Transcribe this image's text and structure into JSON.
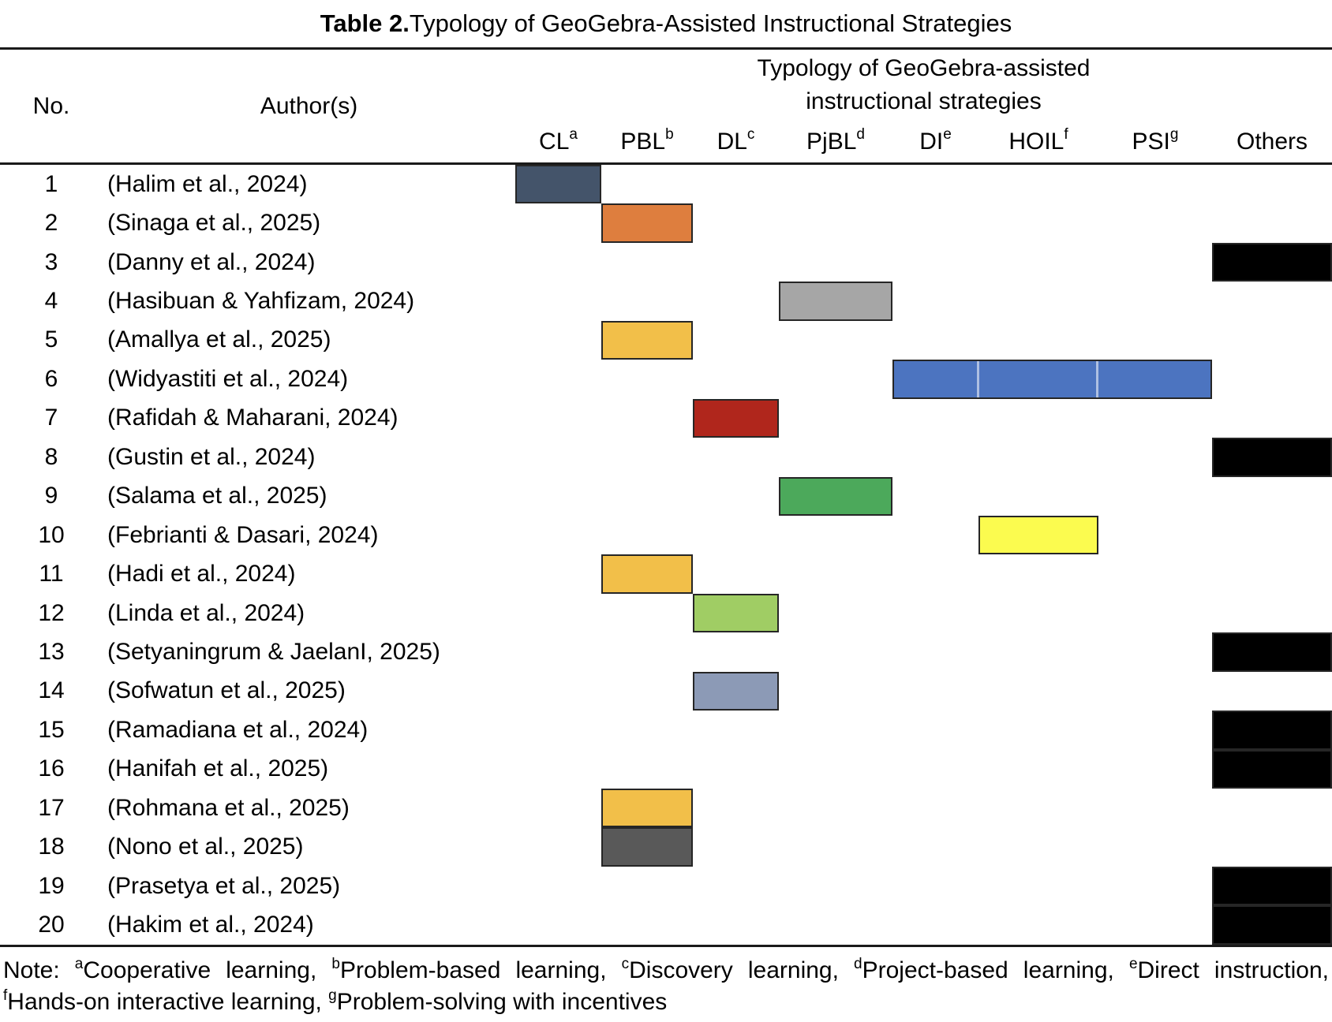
{
  "title": {
    "bold": "Table 2.",
    "rest": " Typology of GeoGebra-Assisted Instructional Strategies"
  },
  "header": {
    "no": "No.",
    "authors": "Author(s)",
    "group_line1": "Typology of GeoGebra-assisted",
    "group_line2": "instructional strategies",
    "columns": [
      {
        "key": "CL",
        "label": "CL",
        "sup": "a"
      },
      {
        "key": "PBL",
        "label": "PBL",
        "sup": "b"
      },
      {
        "key": "DL",
        "label": "DL",
        "sup": "c"
      },
      {
        "key": "PjBL",
        "label": "PjBL",
        "sup": "d"
      },
      {
        "key": "DI",
        "label": "DI",
        "sup": "e"
      },
      {
        "key": "HOIL",
        "label": "HOIL",
        "sup": "f"
      },
      {
        "key": "PSI",
        "label": "PSI",
        "sup": "g"
      },
      {
        "key": "Others",
        "label": "Others",
        "sup": ""
      }
    ]
  },
  "palette": {
    "slate": "#44546A",
    "orange": "#DE7E3E",
    "amber": "#F2BF49",
    "blue": "#4C74C0",
    "red": "#B0261C",
    "gray": "#A6A6A6",
    "green": "#4CA95B",
    "yellow": "#FBFB4F",
    "light_green": "#A0CD64",
    "blue_gray": "#8C9AB6",
    "dark_gray": "#595959",
    "black": "#000000"
  },
  "rows": [
    {
      "no": "1",
      "author": "(Halim et al., 2024)",
      "marks": [
        {
          "col": "CL",
          "color": "#44546A"
        }
      ]
    },
    {
      "no": "2",
      "author": "(Sinaga et al., 2025)",
      "marks": [
        {
          "col": "PBL",
          "color": "#DE7E3E"
        }
      ]
    },
    {
      "no": "3",
      "author": "(Danny et al., 2024)",
      "marks": [
        {
          "col": "Others",
          "color": "#000000"
        }
      ]
    },
    {
      "no": "4",
      "author": "(Hasibuan & Yahfizam, 2024)",
      "marks": [
        {
          "col": "PjBL",
          "color": "#A6A6A6"
        }
      ]
    },
    {
      "no": "5",
      "author": "(Amallya et al., 2025)",
      "marks": [
        {
          "col": "PBL",
          "color": "#F2BF49"
        }
      ]
    },
    {
      "no": "6",
      "author": "(Widyastiti et al., 2024)",
      "marks": [
        {
          "col": "DI",
          "color": "#4C74C0",
          "span": 3
        }
      ]
    },
    {
      "no": "7",
      "author": "(Rafidah & Maharani, 2024)",
      "marks": [
        {
          "col": "DL",
          "color": "#B0261C"
        }
      ]
    },
    {
      "no": "8",
      "author": "(Gustin et al., 2024)",
      "marks": [
        {
          "col": "Others",
          "color": "#000000"
        }
      ]
    },
    {
      "no": "9",
      "author": "(Salama et al., 2025)",
      "marks": [
        {
          "col": "PjBL",
          "color": "#4CA95B"
        }
      ]
    },
    {
      "no": "10",
      "author": "(Febrianti & Dasari, 2024)",
      "marks": [
        {
          "col": "HOIL",
          "color": "#FBFB4F"
        }
      ]
    },
    {
      "no": "11",
      "author": "(Hadi et al., 2024)",
      "marks": [
        {
          "col": "PBL",
          "color": "#F2BF49"
        }
      ]
    },
    {
      "no": "12",
      "author": "(Linda et al., 2024)",
      "marks": [
        {
          "col": "DL",
          "color": "#A0CD64"
        }
      ]
    },
    {
      "no": "13",
      "author": "(Setyaningrum & JaelanI, 2025)",
      "marks": [
        {
          "col": "Others",
          "color": "#000000"
        }
      ]
    },
    {
      "no": "14",
      "author": "(Sofwatun et al., 2025)",
      "marks": [
        {
          "col": "DL",
          "color": "#8C9AB6"
        }
      ]
    },
    {
      "no": "15",
      "author": "(Ramadiana et al., 2024)",
      "marks": [
        {
          "col": "Others",
          "color": "#000000"
        }
      ]
    },
    {
      "no": "16",
      "author": "(Hanifah et al., 2025)",
      "marks": [
        {
          "col": "Others",
          "color": "#000000"
        }
      ]
    },
    {
      "no": "17",
      "author": "(Rohmana et al., 2025)",
      "marks": [
        {
          "col": "PBL",
          "color": "#F2BF49"
        }
      ]
    },
    {
      "no": "18",
      "author": "(Nono et al., 2025)",
      "marks": [
        {
          "col": "PBL",
          "color": "#595959"
        }
      ]
    },
    {
      "no": "19",
      "author": "(Prasetya et al., 2025)",
      "marks": [
        {
          "col": "Others",
          "color": "#000000"
        }
      ]
    },
    {
      "no": "20",
      "author": "(Hakim et al., 2024)",
      "marks": [
        {
          "col": "Others",
          "color": "#000000"
        }
      ]
    }
  ],
  "note": {
    "prefix": "Note: ",
    "items": [
      {
        "sup": "a",
        "text": "Cooperative learning, "
      },
      {
        "sup": "b",
        "text": "Problem-based learning, "
      },
      {
        "sup": "c",
        "text": "Discovery learning, "
      },
      {
        "sup": "d",
        "text": "Project-based learning, "
      },
      {
        "sup": "e",
        "text": "Direct instruction, "
      },
      {
        "sup": "f",
        "text": "Hands-on interactive learning, "
      },
      {
        "sup": "g",
        "text": "Problem-solving with incentives"
      }
    ]
  }
}
